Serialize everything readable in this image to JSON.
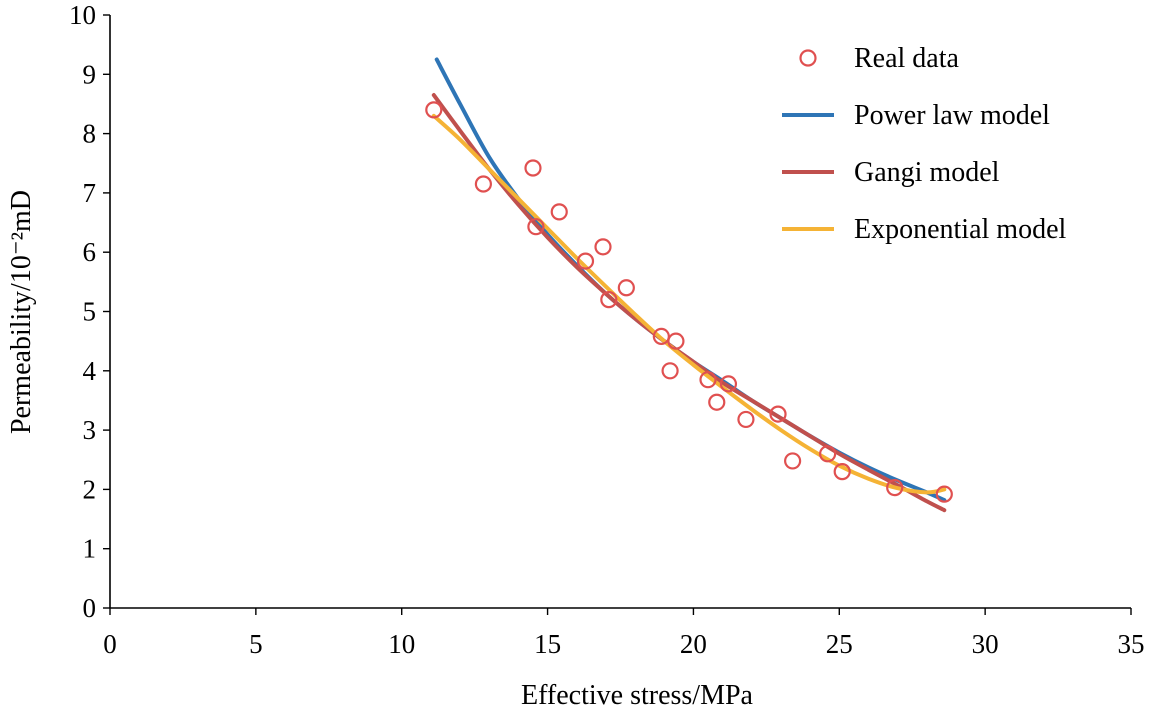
{
  "chart_data": {
    "type": "scatter",
    "xlabel": "Effective stress/MPa",
    "ylabel": "Permeability/10⁻²mD",
    "xlim": [
      0,
      35
    ],
    "ylim": [
      0,
      10
    ],
    "xticks": [
      "0",
      "5",
      "10",
      "15",
      "20",
      "25",
      "30",
      "35"
    ],
    "yticks": [
      "0",
      "1",
      "2",
      "3",
      "4",
      "5",
      "6",
      "7",
      "8",
      "9",
      "10"
    ],
    "grid": false,
    "legend_position": "top-right",
    "series": [
      {
        "name": "Real data",
        "kind": "scatter",
        "color": "#e05050",
        "points": [
          [
            11.1,
            8.4
          ],
          [
            12.8,
            7.15
          ],
          [
            14.5,
            7.42
          ],
          [
            14.6,
            6.43
          ],
          [
            15.4,
            6.68
          ],
          [
            16.3,
            5.85
          ],
          [
            16.9,
            6.09
          ],
          [
            17.1,
            5.2
          ],
          [
            17.7,
            5.4
          ],
          [
            18.9,
            4.58
          ],
          [
            19.2,
            4.0
          ],
          [
            19.4,
            4.5
          ],
          [
            20.5,
            3.85
          ],
          [
            20.8,
            3.47
          ],
          [
            21.2,
            3.78
          ],
          [
            21.8,
            3.18
          ],
          [
            22.9,
            3.27
          ],
          [
            23.4,
            2.48
          ],
          [
            24.6,
            2.6
          ],
          [
            25.1,
            2.3
          ],
          [
            26.9,
            2.03
          ],
          [
            28.6,
            1.92
          ]
        ]
      },
      {
        "name": "Power law model",
        "kind": "line",
        "color": "#2e75b6",
        "points": [
          [
            11.2,
            9.25
          ],
          [
            12.0,
            8.5
          ],
          [
            13.0,
            7.6
          ],
          [
            14.0,
            6.9
          ],
          [
            15.0,
            6.3
          ],
          [
            16.0,
            5.78
          ],
          [
            17.0,
            5.3
          ],
          [
            18.0,
            4.88
          ],
          [
            19.0,
            4.5
          ],
          [
            20.0,
            4.15
          ],
          [
            21.0,
            3.83
          ],
          [
            22.0,
            3.5
          ],
          [
            23.0,
            3.2
          ],
          [
            24.0,
            2.9
          ],
          [
            25.0,
            2.62
          ],
          [
            26.0,
            2.37
          ],
          [
            27.0,
            2.15
          ],
          [
            28.0,
            1.95
          ],
          [
            28.6,
            1.82
          ]
        ]
      },
      {
        "name": "Gangi model",
        "kind": "line",
        "color": "#c0504d",
        "points": [
          [
            11.1,
            8.65
          ],
          [
            12.0,
            8.05
          ],
          [
            13.0,
            7.4
          ],
          [
            14.0,
            6.8
          ],
          [
            15.0,
            6.25
          ],
          [
            16.0,
            5.75
          ],
          [
            17.0,
            5.3
          ],
          [
            18.0,
            4.88
          ],
          [
            19.0,
            4.5
          ],
          [
            20.0,
            4.15
          ],
          [
            21.0,
            3.8
          ],
          [
            22.0,
            3.5
          ],
          [
            23.0,
            3.2
          ],
          [
            24.0,
            2.9
          ],
          [
            25.0,
            2.6
          ],
          [
            26.0,
            2.33
          ],
          [
            27.0,
            2.07
          ],
          [
            28.0,
            1.8
          ],
          [
            28.6,
            1.65
          ]
        ]
      },
      {
        "name": "Exponential model",
        "kind": "line",
        "color": "#f5b335",
        "points": [
          [
            11.1,
            8.3
          ],
          [
            12.0,
            7.9
          ],
          [
            13.0,
            7.4
          ],
          [
            14.0,
            6.9
          ],
          [
            15.0,
            6.4
          ],
          [
            16.0,
            5.9
          ],
          [
            17.0,
            5.42
          ],
          [
            18.0,
            4.95
          ],
          [
            19.0,
            4.5
          ],
          [
            20.0,
            4.1
          ],
          [
            21.0,
            3.72
          ],
          [
            22.0,
            3.35
          ],
          [
            23.0,
            3.0
          ],
          [
            24.0,
            2.68
          ],
          [
            25.0,
            2.4
          ],
          [
            26.0,
            2.18
          ],
          [
            27.0,
            2.02
          ],
          [
            28.0,
            1.95
          ],
          [
            28.6,
            2.0
          ]
        ]
      }
    ]
  }
}
